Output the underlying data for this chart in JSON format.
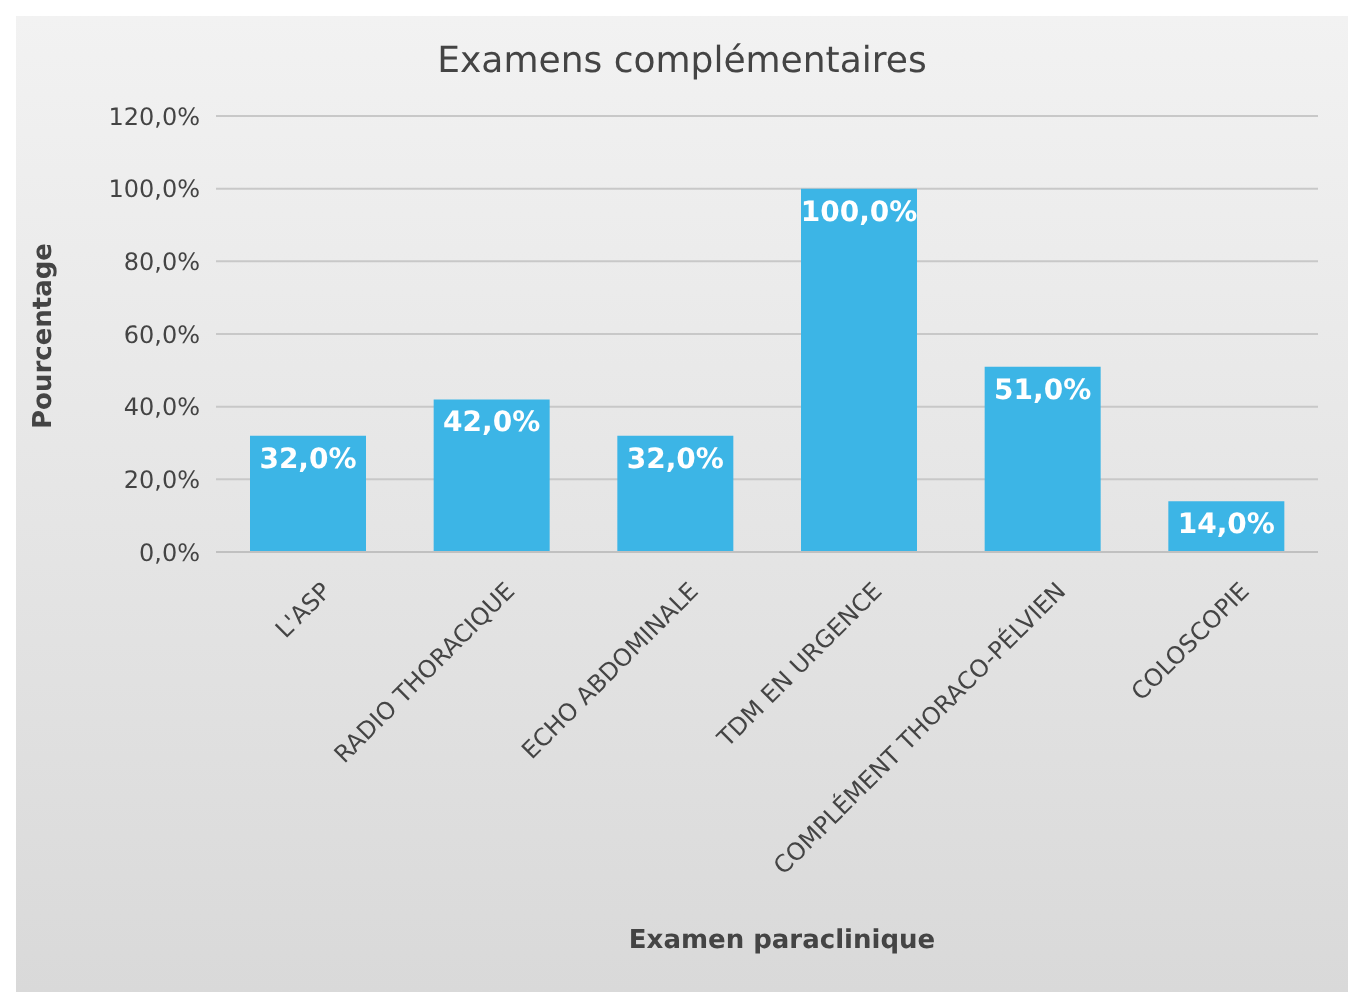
{
  "chart_data": {
    "type": "bar",
    "title": "Examens complémentaires",
    "xlabel": "Examen paraclinique",
    "ylabel": "Pourcentage",
    "categories": [
      "L'ASP",
      "RADIO THORACIQUE",
      "ECHO ABDOMINALE",
      "TDM EN URGENCE",
      "COMPLÉMENT THORACO-PÉLVIEN",
      "COLOSCOPIE"
    ],
    "values": [
      32,
      42,
      32,
      100,
      51,
      14
    ],
    "value_labels": [
      "32,0%",
      "42,0%",
      "32,0%",
      "100,0%",
      "51,0%",
      "14,0%"
    ],
    "color": "#3cb5e6",
    "ylim": [
      0,
      120
    ],
    "yticks": [
      {
        "value": 0,
        "label": "0,0%"
      },
      {
        "value": 20,
        "label": "20,0%"
      },
      {
        "value": 40,
        "label": "40,0%"
      },
      {
        "value": 60,
        "label": "60,0%"
      },
      {
        "value": 80,
        "label": "80,0%"
      },
      {
        "value": 100,
        "label": "100,0%"
      },
      {
        "value": 120,
        "label": "120,0%"
      }
    ],
    "grid": "y"
  }
}
